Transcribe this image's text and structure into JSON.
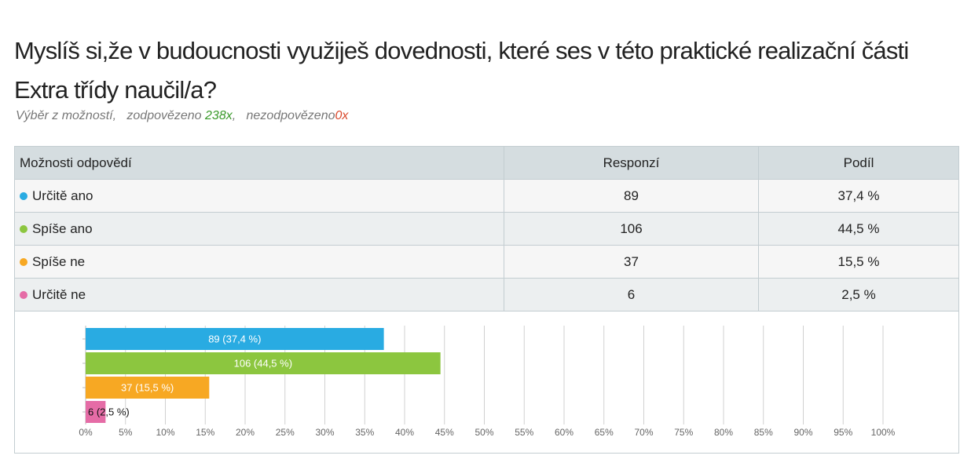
{
  "header": {
    "title": "Myslíš si,že v budoucnosti využiješ dovednosti, které ses v této praktické realizační části Extra třídy naučil/a?",
    "subtitle": {
      "kind": "Výběr z možností,",
      "answered_label": "zodpovězeno",
      "answered": "238x",
      "unanswered_label": "nezodpovězeno",
      "unanswered": "0x"
    }
  },
  "table": {
    "columns": [
      "Možnosti odpovědí",
      "Responzí",
      "Podíl"
    ],
    "rows": [
      [
        "Určitě ano",
        "89",
        "37,4 %"
      ],
      [
        "Spíše ano",
        "106",
        "44,5 %"
      ],
      [
        "Spíše ne",
        "37",
        "15,5 %"
      ],
      [
        "Určitě ne",
        "6",
        "2,5 %"
      ]
    ]
  },
  "chart_data": {
    "type": "hbar",
    "categories": [
      "Určitě ano",
      "Spíše ano",
      "Spíše ne",
      "Určitě ne"
    ],
    "values": [
      37.4,
      44.5,
      15.5,
      2.5
    ],
    "value_labels": [
      "89 (37,4 %)",
      "106 (44,5 %)",
      "37 (15,5 %)",
      "6 (2,5 %)"
    ],
    "colors": [
      "#29abe2",
      "#8cc63f",
      "#f7a823",
      "#e56ca6"
    ],
    "xlim": [
      0,
      100
    ],
    "xticks": [
      {
        "value": 0,
        "label": "0%"
      },
      {
        "value": 5,
        "label": "5%"
      },
      {
        "value": 10,
        "label": "10%"
      },
      {
        "value": 15,
        "label": "15%"
      },
      {
        "value": 20,
        "label": "20%"
      },
      {
        "value": 25,
        "label": "25%"
      },
      {
        "value": 30,
        "label": "30%"
      },
      {
        "value": 35,
        "label": "35%"
      },
      {
        "value": 40,
        "label": "40%"
      },
      {
        "value": 45,
        "label": "45%"
      },
      {
        "value": 50,
        "label": "50%"
      },
      {
        "value": 55,
        "label": "55%"
      },
      {
        "value": 60,
        "label": "60%"
      },
      {
        "value": 65,
        "label": "65%"
      },
      {
        "value": 70,
        "label": "70%"
      },
      {
        "value": 75,
        "label": "75%"
      },
      {
        "value": 80,
        "label": "80%"
      },
      {
        "value": 85,
        "label": "85%"
      },
      {
        "value": 90,
        "label": "90%"
      },
      {
        "value": 95,
        "label": "95%"
      },
      {
        "value": 100,
        "label": "100%"
      }
    ],
    "grid": true
  }
}
